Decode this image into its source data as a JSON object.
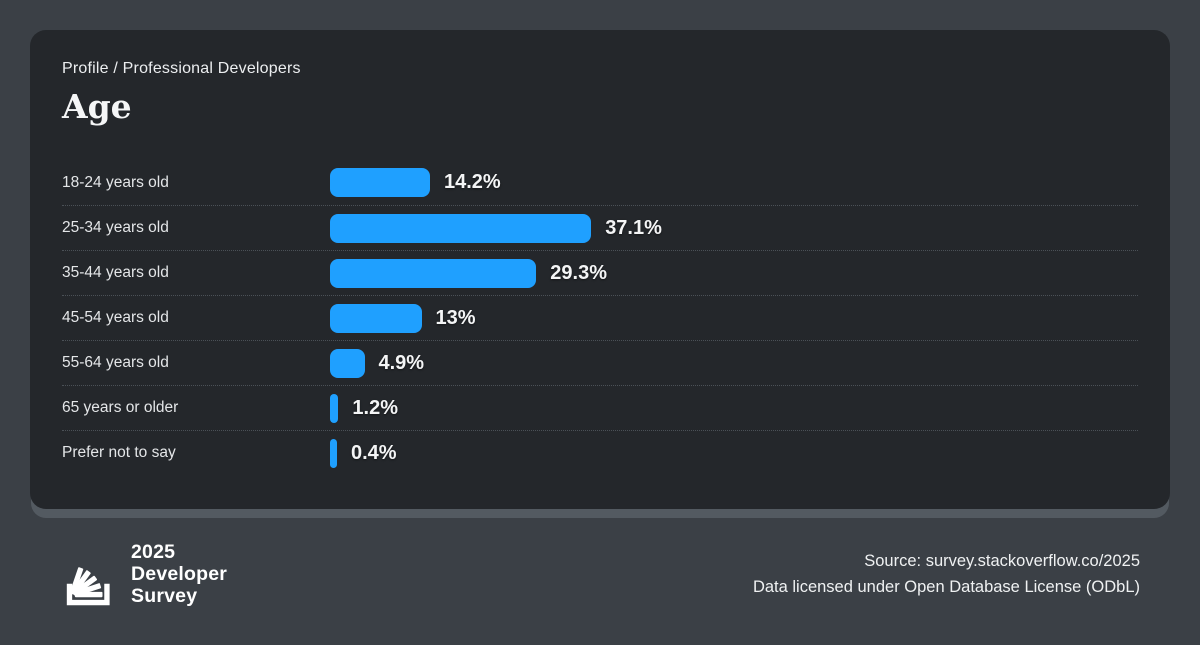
{
  "page": {
    "background": "#3b4046",
    "card_background": "#24272b",
    "card_edge_color": "#535a61"
  },
  "header": {
    "breadcrumb": "Profile / Professional Developers",
    "title": "Age"
  },
  "chart_data": {
    "type": "bar",
    "orientation": "horizontal",
    "title": "Age",
    "subtitle": "Profile / Professional Developers",
    "categories": [
      "18-24 years old",
      "25-34 years old",
      "35-44 years old",
      "45-54 years old",
      "55-64 years old",
      "65 years or older",
      "Prefer not to say"
    ],
    "values": [
      14.2,
      37.1,
      29.3,
      13,
      4.9,
      1.2,
      0.4
    ],
    "value_labels": [
      "14.2%",
      "37.1%",
      "29.3%",
      "13%",
      "4.9%",
      "1.2%",
      "0.4%"
    ],
    "unit": "%",
    "xlim": [
      0,
      40
    ],
    "bar_color": "#1fa0ff",
    "grid": false,
    "legend": false,
    "separator_style": "dotted"
  },
  "footer": {
    "logo": {
      "icon": "stackoverflow-icon",
      "line1": "2025",
      "line2": "Developer",
      "line3": "Survey"
    },
    "source_line1": "Source: survey.stackoverflow.co/2025",
    "source_line2": "Data licensed under Open Database License (ODbL)"
  }
}
